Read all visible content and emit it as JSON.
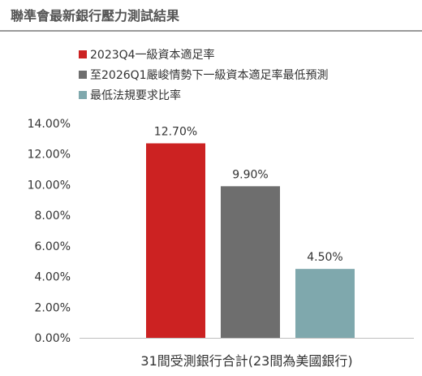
{
  "header": {
    "title": "聯準會最新銀行壓力測試結果"
  },
  "chart_data": {
    "type": "bar",
    "categories": [
      "31間受測銀行合計(23間為美國銀行)"
    ],
    "series": [
      {
        "name": "2023Q4一級資本適足率",
        "values": [
          12.7
        ],
        "color": "#cc2222",
        "label": "12.70%"
      },
      {
        "name": "至2026Q1嚴峻情勢下一級資本適足率最低預測",
        "values": [
          9.9
        ],
        "color": "#6e6e6e",
        "label": "9.90%"
      },
      {
        "name": "最低法規要求比率",
        "values": [
          4.5
        ],
        "color": "#7fa8ad",
        "label": "4.50%"
      }
    ],
    "yticks": [
      "0.00%",
      "2.00%",
      "4.00%",
      "6.00%",
      "8.00%",
      "10.00%",
      "12.00%",
      "14.00%"
    ],
    "ylim": [
      0,
      14
    ],
    "legend_position": "top-left",
    "grid": false
  }
}
